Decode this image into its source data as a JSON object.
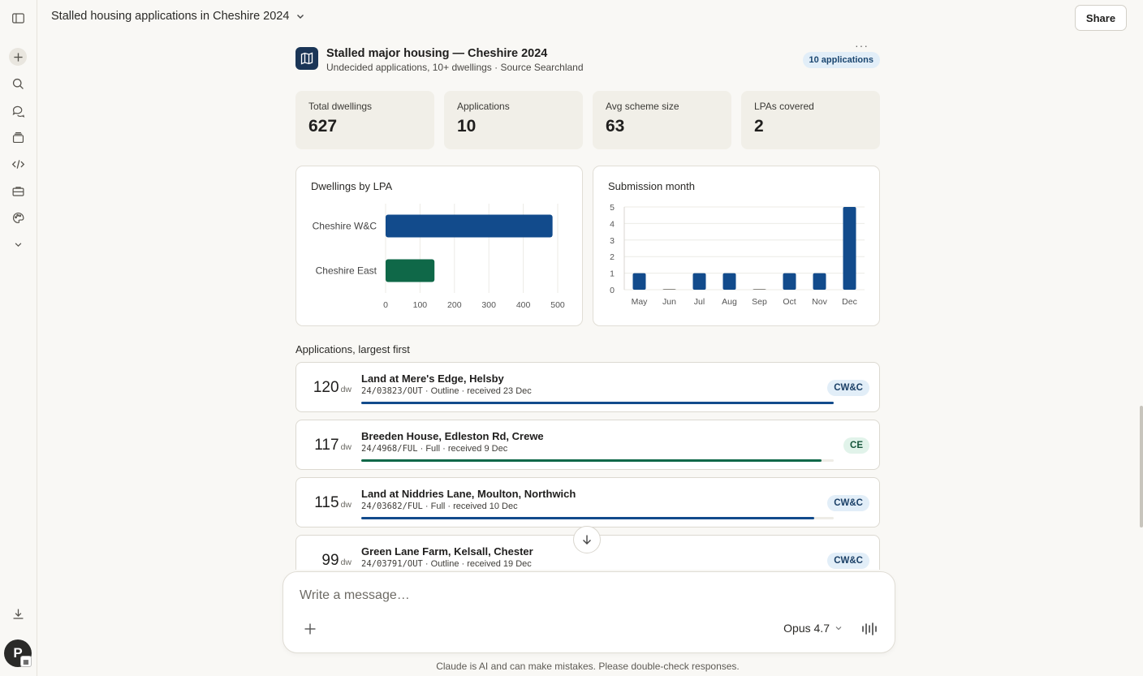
{
  "header": {
    "conversation_title": "Stalled housing applications in Cheshire 2024",
    "share_label": "Share"
  },
  "sidebar": {
    "items": [
      {
        "icon": "sidebar-toggle-icon"
      },
      {
        "icon": "new-chat-icon"
      },
      {
        "icon": "search-icon"
      },
      {
        "icon": "chats-icon"
      },
      {
        "icon": "projects-icon"
      },
      {
        "icon": "code-icon"
      },
      {
        "icon": "briefcase-icon"
      },
      {
        "icon": "palette-icon"
      },
      {
        "icon": "chevron-down-icon"
      },
      {
        "icon": "download-icon"
      }
    ],
    "avatar_initial": "P"
  },
  "artifact": {
    "title": "Stalled major housing — Cheshire 2024",
    "subtitle": "Undecided applications, 10+ dwellings · Source Searchland",
    "badge": "10 applications",
    "more": "···"
  },
  "stats": [
    {
      "label": "Total dwellings",
      "value": "627"
    },
    {
      "label": "Applications",
      "value": "10"
    },
    {
      "label": "Avg scheme size",
      "value": "63"
    },
    {
      "label": "LPAs covered",
      "value": "2"
    }
  ],
  "chart_data": [
    {
      "type": "bar",
      "orientation": "horizontal",
      "title": "Dwellings by LPA",
      "categories": [
        "Cheshire W&C",
        "Cheshire East"
      ],
      "values": [
        485,
        142
      ],
      "colors": [
        "#124b8c",
        "#0f6848"
      ],
      "xlim": [
        0,
        500
      ],
      "xticks": [
        "0",
        "100",
        "200",
        "300",
        "400",
        "500"
      ],
      "grid": true
    },
    {
      "type": "bar",
      "title": "Submission month",
      "categories": [
        "May",
        "Jun",
        "Jul",
        "Aug",
        "Sep",
        "Oct",
        "Nov",
        "Dec"
      ],
      "values": [
        1,
        0,
        1,
        1,
        0,
        1,
        1,
        5
      ],
      "color": "#124b8c",
      "ylim": [
        0,
        5
      ],
      "yticks": [
        "0",
        "1",
        "2",
        "3",
        "4",
        "5"
      ],
      "grid": true
    }
  ],
  "applications": {
    "title": "Applications, largest first",
    "unit": "dw",
    "items": [
      {
        "dwellings": "120",
        "name": "Land at Mere's Edge, Helsby",
        "ref": "24/03823/OUT",
        "meta": " · Outline · received 23 Dec",
        "tag": "CW&C",
        "bar_fraction": 1.0,
        "color": "#124b8c"
      },
      {
        "dwellings": "117",
        "name": "Breeden House, Edleston Rd, Crewe",
        "ref": "24/4968/FUL",
        "meta": " · Full · received 9 Dec",
        "tag": "CE",
        "bar_fraction": 0.975,
        "color": "#0f6848"
      },
      {
        "dwellings": "115",
        "name": "Land at Niddries Lane, Moulton, Northwich",
        "ref": "24/03682/FUL",
        "meta": " · Full · received 10 Dec",
        "tag": "CW&C",
        "bar_fraction": 0.958,
        "color": "#124b8c"
      },
      {
        "dwellings": "99",
        "name": "Green Lane Farm, Kelsall, Chester",
        "ref": "24/03791/OUT",
        "meta": " · Outline · received 19 Dec",
        "tag": "CW&C",
        "bar_fraction": 0.825,
        "color": "#124b8c"
      }
    ]
  },
  "composer": {
    "placeholder": "Write a message…",
    "model": "Opus 4.7"
  },
  "disclaimer": "Claude is AI and can make mistakes. Please double-check responses."
}
